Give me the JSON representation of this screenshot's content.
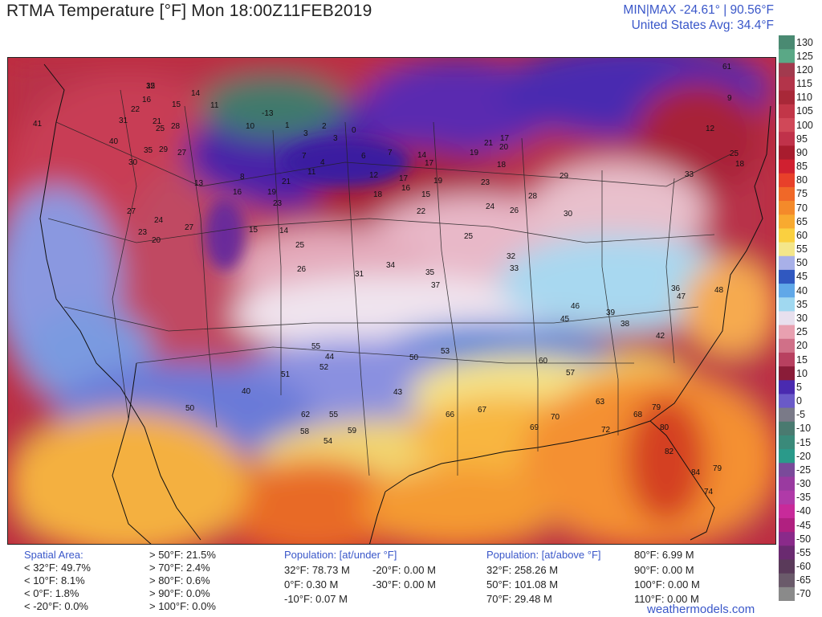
{
  "header": {
    "title": "RTMA Temperature [°F]  Mon 18:00Z11FEB2019",
    "minmax": "MIN|MAX -24.61°  |  90.56°F",
    "avg": "United States Avg: 34.4°F"
  },
  "colorbar": {
    "labels": [
      "130",
      "125",
      "120",
      "115",
      "110",
      "105",
      "100",
      "95",
      "90",
      "85",
      "80",
      "75",
      "70",
      "65",
      "60",
      "55",
      "50",
      "45",
      "40",
      "35",
      "30",
      "25",
      "20",
      "15",
      "10",
      "5",
      "0",
      "-5",
      "-10",
      "-15",
      "-20",
      "-25",
      "-30",
      "-35",
      "-40",
      "-45",
      "-50",
      "-55",
      "-60",
      "-65",
      "-70"
    ],
    "colors": [
      "#4a8a72",
      "#5aa886",
      "#a23a4e",
      "#b3344a",
      "#a82838",
      "#c23648",
      "#d04858",
      "#c0324a",
      "#a81c2e",
      "#d02030",
      "#e8402a",
      "#f06828",
      "#f48a2a",
      "#f8aa30",
      "#fad040",
      "#f4e68a",
      "#a8b0e8",
      "#3058c0",
      "#60a8e8",
      "#a0d8f0",
      "#e8e0ee",
      "#e8a0b0",
      "#d07088",
      "#b84060",
      "#8a1c38",
      "#4a2ab0",
      "#6a5ac8",
      "#7a7a88",
      "#4a7a70",
      "#3a8a7a",
      "#2a9a8a",
      "#7a4a9a",
      "#9a3aa0",
      "#b03aa8",
      "#c82a9a",
      "#b02080",
      "#8a2a8a",
      "#6a2a70",
      "#5a3a5a",
      "#6a5a6a",
      "#8a8a8a"
    ]
  },
  "footer": {
    "spatial_title": "Spatial Area:",
    "spatial_left": [
      "< 32°F: 49.7%",
      "< 10°F: 8.1%",
      "< 0°F: 1.8%",
      "< -20°F: 0.0%"
    ],
    "spatial_right": [
      "> 50°F: 21.5%",
      "> 70°F: 2.4%",
      "> 80°F: 0.6%",
      "> 90°F: 0.0%",
      "> 100°F: 0.0%"
    ],
    "pop_under_title": "Population: [at/under °F]",
    "pop_under_a": [
      "32°F: 78.73 M",
      "0°F: 0.30 M",
      "-10°F: 0.07 M"
    ],
    "pop_under_b": [
      "-20°F: 0.00 M",
      "-30°F: 0.00 M"
    ],
    "pop_above_title": "Population: [at/above °F]",
    "pop_above_a": [
      "32°F: 258.26 M",
      "50°F: 101.08 M",
      "70°F: 29.48 M"
    ],
    "pop_above_b": [
      "80°F: 6.99 M",
      "90°F: 0.00 M",
      "100°F: 0.00 M",
      "110°F: 0.00 M"
    ],
    "site": "weathermodels.com"
  },
  "map": {
    "station_values": [
      {
        "v": "15"
      },
      {
        "v": "16"
      },
      {
        "v": "15"
      },
      {
        "v": "14"
      },
      {
        "v": "11"
      },
      {
        "v": "22"
      },
      {
        "v": "21"
      },
      {
        "v": "25"
      },
      {
        "v": "41"
      },
      {
        "v": "31"
      },
      {
        "v": "28"
      },
      {
        "v": "40"
      },
      {
        "v": "35"
      },
      {
        "v": "29"
      },
      {
        "v": "27"
      },
      {
        "v": "30"
      },
      {
        "v": "13"
      },
      {
        "v": "16"
      },
      {
        "v": "8"
      },
      {
        "v": "19"
      },
      {
        "v": "21"
      },
      {
        "v": "23"
      },
      {
        "v": "27"
      },
      {
        "v": "24"
      },
      {
        "v": "23"
      },
      {
        "v": "20"
      },
      {
        "v": "27"
      },
      {
        "v": "15"
      },
      {
        "v": "14"
      },
      {
        "v": "25"
      },
      {
        "v": "26"
      },
      {
        "v": "-13"
      },
      {
        "v": "10"
      },
      {
        "v": "1"
      },
      {
        "v": "3"
      },
      {
        "v": "0"
      },
      {
        "v": "2"
      },
      {
        "v": "3"
      },
      {
        "v": "7"
      },
      {
        "v": "4"
      },
      {
        "v": "6"
      },
      {
        "v": "7"
      },
      {
        "v": "14"
      },
      {
        "v": "17"
      },
      {
        "v": "11"
      },
      {
        "v": "12"
      },
      {
        "v": "17"
      },
      {
        "v": "18"
      },
      {
        "v": "16"
      },
      {
        "v": "15"
      },
      {
        "v": "19"
      },
      {
        "v": "21"
      },
      {
        "v": "20"
      },
      {
        "v": "17"
      },
      {
        "v": "19"
      },
      {
        "v": "18"
      },
      {
        "v": "23"
      },
      {
        "v": "24"
      },
      {
        "v": "22"
      },
      {
        "v": "25"
      },
      {
        "v": "26"
      },
      {
        "v": "28"
      },
      {
        "v": "29"
      },
      {
        "v": "30"
      },
      {
        "v": "32"
      },
      {
        "v": "33"
      },
      {
        "v": "35"
      },
      {
        "v": "37"
      },
      {
        "v": "34"
      },
      {
        "v": "31"
      },
      {
        "v": "46"
      },
      {
        "v": "45"
      },
      {
        "v": "50"
      },
      {
        "v": "43"
      },
      {
        "v": "53"
      },
      {
        "v": "55"
      },
      {
        "v": "52"
      },
      {
        "v": "44"
      },
      {
        "v": "51"
      },
      {
        "v": "40"
      },
      {
        "v": "50"
      },
      {
        "v": "62"
      },
      {
        "v": "58"
      },
      {
        "v": "55"
      },
      {
        "v": "54"
      },
      {
        "v": "59"
      },
      {
        "v": "66"
      },
      {
        "v": "67"
      },
      {
        "v": "69"
      },
      {
        "v": "70"
      },
      {
        "v": "72"
      },
      {
        "v": "79"
      },
      {
        "v": "80"
      },
      {
        "v": "82"
      },
      {
        "v": "84"
      },
      {
        "v": "79"
      },
      {
        "v": "74"
      },
      {
        "v": "60"
      },
      {
        "v": "57"
      },
      {
        "v": "63"
      },
      {
        "v": "68"
      },
      {
        "v": "48"
      },
      {
        "v": "47"
      },
      {
        "v": "42"
      },
      {
        "v": "39"
      },
      {
        "v": "36"
      },
      {
        "v": "38"
      },
      {
        "v": "61"
      },
      {
        "v": "9"
      },
      {
        "v": "12"
      },
      {
        "v": "25"
      },
      {
        "v": "18"
      },
      {
        "v": "33"
      },
      {
        "v": "32"
      }
    ]
  }
}
